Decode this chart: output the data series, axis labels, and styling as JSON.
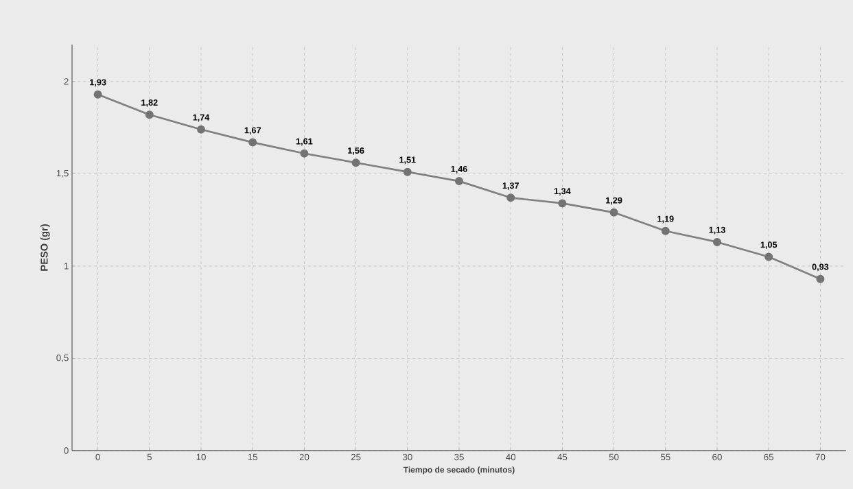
{
  "chart_data": {
    "type": "line",
    "xlabel": "Tiempo de secado (minutos)",
    "ylabel": "PESO (gr)",
    "categories": [
      "0",
      "5",
      "10",
      "15",
      "20",
      "25",
      "30",
      "35",
      "40",
      "45",
      "50",
      "55",
      "60",
      "65",
      "70"
    ],
    "values": [
      1.93,
      1.82,
      1.74,
      1.67,
      1.61,
      1.56,
      1.51,
      1.46,
      1.37,
      1.34,
      1.29,
      1.19,
      1.13,
      1.05,
      0.93
    ],
    "value_labels": [
      "1,93",
      "1,82",
      "1,74",
      "1,67",
      "1,61",
      "1,56",
      "1,51",
      "1,46",
      "1,37",
      "1,34",
      "1,29",
      "1,19",
      "1,13",
      "1,05",
      "0,93"
    ],
    "color": "#7f7f7f",
    "ylim": [
      0,
      2.2
    ],
    "yticks": [
      0,
      {
        "value": 0.5,
        "label": "0,5"
      },
      1,
      {
        "value": 1.5,
        "label": "1,5"
      },
      2
    ],
    "grid": true,
    "marker": "circle",
    "line_style": "solid"
  }
}
